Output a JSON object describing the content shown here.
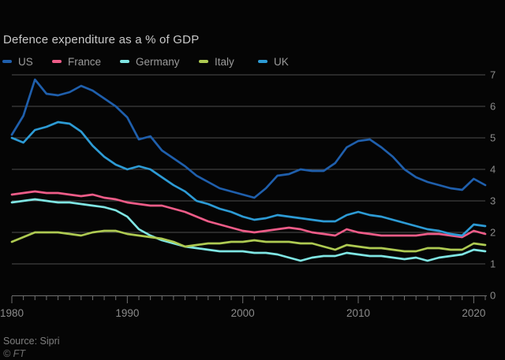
{
  "title": "Defence expenditure as a % of GDP",
  "source_text": "Source: Sipri",
  "copyright_text": "© FT",
  "colors": {
    "background": "#050505",
    "gridline": "#4d4d4d",
    "axis": "#717171",
    "tick_label": "#8b8b8b",
    "title": "#c9c9c9",
    "legend_label": "#9b9b9b"
  },
  "chart_data": {
    "type": "line",
    "title": "Defence expenditure as a % of GDP",
    "xlabel": "",
    "ylabel": "",
    "grid": true,
    "legend_position": "top",
    "ylim": [
      0,
      7
    ],
    "yticks": [
      0,
      1,
      2,
      3,
      4,
      5,
      6,
      7
    ],
    "xticks": [
      1980,
      1990,
      2000,
      2010,
      2020
    ],
    "x": [
      1980,
      1981,
      1982,
      1983,
      1984,
      1985,
      1986,
      1987,
      1988,
      1989,
      1990,
      1991,
      1992,
      1993,
      1994,
      1995,
      1996,
      1997,
      1998,
      1999,
      2000,
      2001,
      2002,
      2003,
      2004,
      2005,
      2006,
      2007,
      2008,
      2009,
      2010,
      2011,
      2012,
      2013,
      2014,
      2015,
      2016,
      2017,
      2018,
      2019,
      2020,
      2021
    ],
    "series": [
      {
        "name": "US",
        "color": "#1f5fac",
        "values": [
          5.1,
          5.7,
          6.85,
          6.4,
          6.35,
          6.45,
          6.65,
          6.5,
          6.25,
          6.0,
          5.65,
          4.95,
          5.05,
          4.6,
          4.35,
          4.1,
          3.8,
          3.6,
          3.4,
          3.3,
          3.2,
          3.1,
          3.4,
          3.8,
          3.85,
          4.0,
          3.95,
          3.95,
          4.2,
          4.7,
          4.9,
          4.95,
          4.7,
          4.4,
          4.0,
          3.75,
          3.6,
          3.5,
          3.4,
          3.35,
          3.7,
          3.5
        ]
      },
      {
        "name": "France",
        "color": "#ee5c88",
        "values": [
          3.2,
          3.25,
          3.3,
          3.25,
          3.25,
          3.2,
          3.15,
          3.2,
          3.1,
          3.05,
          2.95,
          2.9,
          2.85,
          2.85,
          2.75,
          2.65,
          2.5,
          2.35,
          2.25,
          2.15,
          2.05,
          2.0,
          2.05,
          2.1,
          2.15,
          2.1,
          2.0,
          1.95,
          1.9,
          2.1,
          2.0,
          1.95,
          1.9,
          1.9,
          1.9,
          1.9,
          1.95,
          1.95,
          1.9,
          1.85,
          2.05,
          1.95
        ]
      },
      {
        "name": "Germany",
        "color": "#7fe5e3",
        "values": [
          2.95,
          3.0,
          3.05,
          3.0,
          2.95,
          2.95,
          2.9,
          2.85,
          2.8,
          2.7,
          2.5,
          2.1,
          1.9,
          1.75,
          1.65,
          1.55,
          1.5,
          1.45,
          1.4,
          1.4,
          1.4,
          1.35,
          1.35,
          1.3,
          1.2,
          1.1,
          1.2,
          1.25,
          1.25,
          1.35,
          1.3,
          1.25,
          1.25,
          1.2,
          1.15,
          1.2,
          1.1,
          1.2,
          1.25,
          1.3,
          1.45,
          1.4
        ]
      },
      {
        "name": "Italy",
        "color": "#aeca52",
        "values": [
          1.7,
          1.85,
          2.0,
          2.0,
          2.0,
          1.95,
          1.9,
          2.0,
          2.05,
          2.05,
          1.95,
          1.9,
          1.85,
          1.8,
          1.7,
          1.55,
          1.6,
          1.65,
          1.65,
          1.7,
          1.7,
          1.75,
          1.7,
          1.7,
          1.7,
          1.65,
          1.65,
          1.55,
          1.45,
          1.6,
          1.55,
          1.5,
          1.5,
          1.45,
          1.4,
          1.4,
          1.5,
          1.5,
          1.45,
          1.45,
          1.65,
          1.6
        ]
      },
      {
        "name": "UK",
        "color": "#2d9bd5",
        "values": [
          5.0,
          4.85,
          5.25,
          5.35,
          5.5,
          5.45,
          5.2,
          4.75,
          4.4,
          4.15,
          4.0,
          4.1,
          4.0,
          3.75,
          3.5,
          3.3,
          3.0,
          2.9,
          2.75,
          2.65,
          2.5,
          2.4,
          2.45,
          2.55,
          2.5,
          2.45,
          2.4,
          2.35,
          2.35,
          2.55,
          2.65,
          2.55,
          2.5,
          2.4,
          2.3,
          2.2,
          2.1,
          2.05,
          1.95,
          1.9,
          2.25,
          2.2
        ]
      }
    ]
  }
}
